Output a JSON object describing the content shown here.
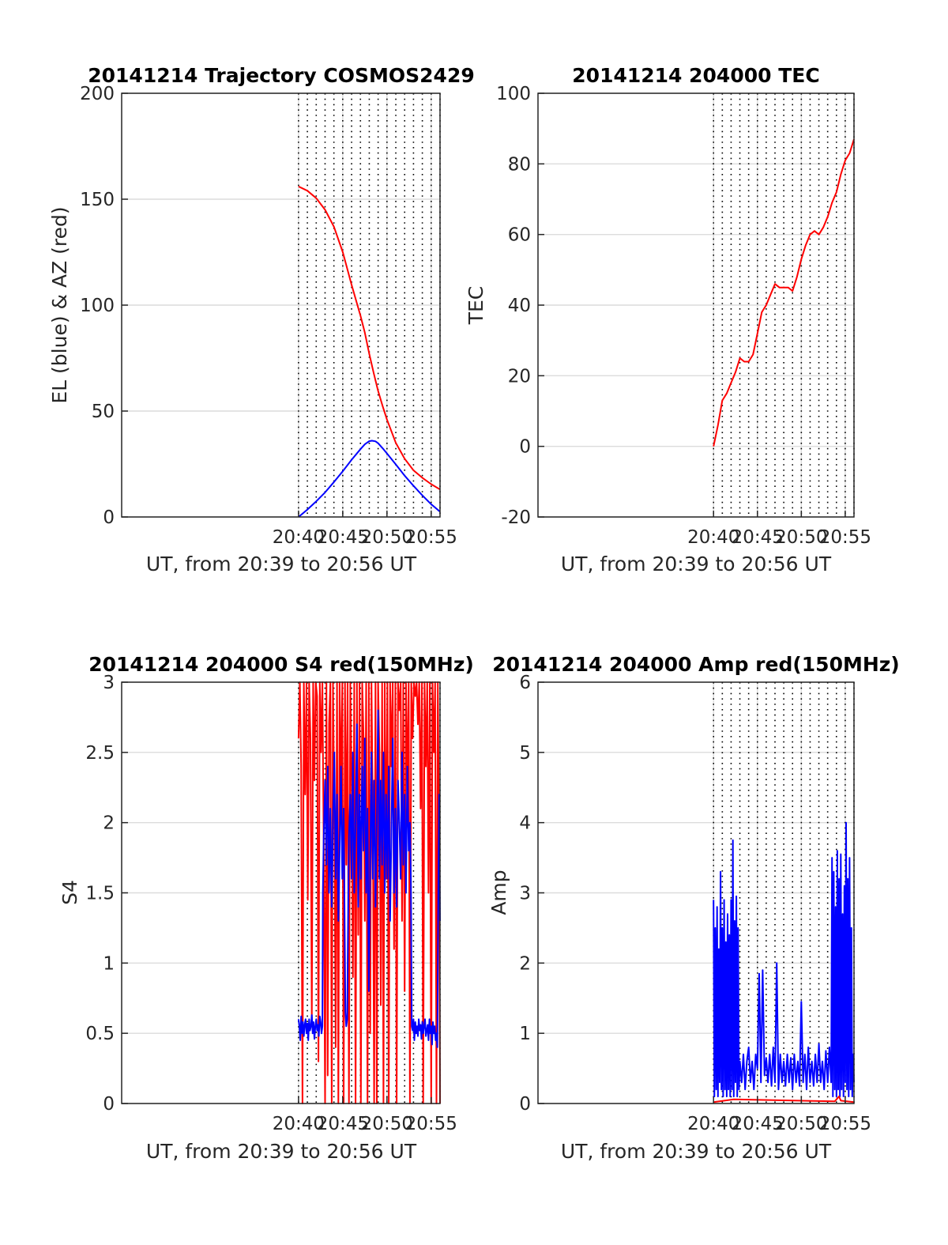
{
  "chart_data": [
    {
      "type": "line",
      "title": "20141214 Trajectory COSMOS2429",
      "xlabel": "UT, from 20:39 to 20:56 UT",
      "ylabel": "EL (blue) & AZ (red)",
      "xlim": [
        20.0,
        56.0
      ],
      "ylim": [
        0,
        200
      ],
      "xticks": [
        40,
        45,
        50,
        55
      ],
      "xtick_labels": [
        "20:40",
        "20:45",
        "20:50",
        "20:55"
      ],
      "yticks": [
        0,
        50,
        100,
        150,
        200
      ],
      "ytick_labels": [
        "0",
        "50",
        "100",
        "150",
        "200"
      ],
      "grid": true,
      "series": [
        {
          "color": "#0000ff",
          "x": [
            40,
            41,
            42,
            43,
            44,
            45,
            46,
            47,
            47.5,
            48,
            48.3,
            48.7,
            49,
            49.5,
            50,
            51,
            52,
            53,
            54,
            55,
            56
          ],
          "y": [
            0,
            3.5,
            7.4,
            11.6,
            16.5,
            21.6,
            27,
            32,
            34.3,
            35.8,
            36,
            35.7,
            34.8,
            32.5,
            30,
            24.8,
            19.5,
            14.7,
            10.2,
            6,
            2.5
          ]
        },
        {
          "color": "#ff0000",
          "x": [
            40,
            41,
            42,
            43,
            44,
            45,
            46,
            47,
            47.5,
            48,
            48.5,
            49,
            49.5,
            50,
            51,
            52,
            53,
            54,
            55,
            56
          ],
          "y": [
            156,
            154,
            150.5,
            145,
            137,
            125,
            109.5,
            95,
            87,
            77,
            68,
            59.5,
            52.5,
            46,
            35,
            27.5,
            22,
            18.5,
            15.5,
            13
          ]
        }
      ]
    },
    {
      "type": "line",
      "title": "20141214 204000 TEC",
      "xlabel": "UT, from 20:39 to 20:56 UT",
      "ylabel": "TEC",
      "xlim": [
        20.0,
        56.0
      ],
      "ylim": [
        -20,
        100
      ],
      "xticks": [
        40,
        45,
        50,
        55
      ],
      "xtick_labels": [
        "20:40",
        "20:45",
        "20:50",
        "20:55"
      ],
      "yticks": [
        -20,
        0,
        20,
        40,
        60,
        80,
        100
      ],
      "ytick_labels": [
        "-20",
        "0",
        "20",
        "40",
        "60",
        "80",
        "100"
      ],
      "grid": true,
      "series": [
        {
          "color": "#ff0000",
          "x": [
            40,
            40.5,
            41,
            41.5,
            42,
            42.5,
            43,
            43.5,
            44,
            44.5,
            45,
            45.5,
            46,
            46.5,
            47,
            47.5,
            48,
            48.5,
            49,
            49.5,
            50,
            50.5,
            51,
            51.5,
            52,
            52.5,
            53,
            53.5,
            54,
            54.5,
            55,
            55.5,
            56
          ],
          "y": [
            0,
            6,
            13,
            15,
            18,
            21,
            25,
            24,
            24,
            26,
            32,
            38,
            40,
            43,
            46,
            45,
            45,
            45,
            44,
            48,
            53,
            57,
            60,
            61,
            60,
            62,
            65,
            69,
            72,
            77,
            81,
            83,
            87
          ]
        }
      ]
    },
    {
      "type": "line",
      "title": "20141214 204000 S4 red(150MHz)",
      "xlabel": "UT, from 20:39 to 20:56 UT",
      "ylabel": "S4",
      "xlim": [
        20.0,
        56.0
      ],
      "ylim": [
        0,
        3
      ],
      "xticks": [
        40,
        45,
        50,
        55
      ],
      "xtick_labels": [
        "20:40",
        "20:45",
        "20:50",
        "20:55"
      ],
      "yticks": [
        0,
        0.5,
        1,
        1.5,
        2,
        2.5,
        3
      ],
      "ytick_labels": [
        "0",
        "0.5",
        "1",
        "1.5",
        "2",
        "2.5",
        "3"
      ],
      "grid": true,
      "series": [
        {
          "color": "#ff0000",
          "x": [
            40,
            40.15,
            40.3,
            40.45,
            40.6,
            40.75,
            40.9,
            41.05,
            41.2,
            41.35,
            41.5,
            41.65,
            41.8,
            41.95,
            42.1,
            42.25,
            42.4,
            42.55,
            42.7,
            42.85,
            43.0,
            43.15,
            43.3,
            43.45,
            43.6,
            43.75,
            43.9,
            44.05,
            44.2,
            44.35,
            44.5,
            44.65,
            44.8,
            44.95,
            45.1,
            45.25,
            45.4,
            45.55,
            45.7,
            45.85,
            46.0,
            46.15,
            46.3,
            46.45,
            46.6,
            46.75,
            46.9,
            47.05,
            47.2,
            47.35,
            47.5,
            47.65,
            47.8,
            47.95,
            48.1,
            48.25,
            48.4,
            48.55,
            48.7,
            48.85,
            49.0,
            49.15,
            49.3,
            49.45,
            49.6,
            49.75,
            49.9,
            50.05,
            50.2,
            50.35,
            50.5,
            50.65,
            50.8,
            50.95,
            51.1,
            51.25,
            51.4,
            51.55,
            51.7,
            51.85,
            52.0,
            52.15,
            52.3,
            52.45,
            52.6,
            52.75,
            52.9,
            53.05,
            53.2,
            53.35,
            53.5,
            53.65,
            53.8,
            53.95,
            54.1,
            54.25,
            54.4,
            54.55,
            54.7,
            54.85,
            55.0,
            55.15,
            55.3,
            55.45,
            55.6,
            55.75,
            55.9,
            56.0
          ],
          "y": [
            2.6,
            3,
            2.4,
            0,
            3,
            2.2,
            3,
            1.45,
            3,
            2.6,
            0.6,
            3,
            2.3,
            3,
            2.9,
            0.3,
            3,
            2.5,
            3,
            1.8,
            0,
            3,
            0.2,
            2.7,
            3,
            0,
            3,
            2.1,
            0.4,
            3,
            0,
            3,
            2.2,
            3,
            0,
            3,
            1.7,
            3,
            0,
            3,
            2.3,
            0.9,
            3,
            0,
            3,
            1.2,
            3,
            0,
            3,
            2.6,
            1.3,
            3,
            0,
            3,
            0.5,
            3,
            2.1,
            0,
            3,
            0,
            3,
            2.5,
            0.7,
            3,
            0,
            3,
            1.6,
            3,
            0,
            3,
            2.4,
            3,
            1.1,
            3,
            0,
            3,
            2.8,
            3,
            1.3,
            3,
            0.8,
            3,
            2.2,
            3,
            0,
            3,
            2.6,
            3,
            2.9,
            3,
            2.7,
            3,
            2.1,
            3,
            0,
            3,
            2.4,
            3,
            1.5,
            3,
            0,
            3,
            2.5,
            3,
            0,
            3,
            1.8,
            0
          ]
        },
        {
          "color": "#0000ff",
          "x": [
            40,
            40.1,
            40.2,
            40.3,
            40.4,
            40.5,
            40.6,
            40.7,
            40.8,
            40.9,
            41.0,
            41.1,
            41.2,
            41.3,
            41.4,
            41.5,
            41.6,
            41.7,
            41.8,
            41.9,
            42.0,
            42.1,
            42.2,
            42.3,
            42.4,
            42.5,
            42.6,
            42.7,
            42.75,
            42.85,
            43.0,
            43.15,
            43.3,
            43.45,
            43.6,
            43.75,
            43.9,
            44.05,
            44.2,
            44.35,
            44.5,
            44.65,
            44.8,
            44.95,
            45.1,
            45.2,
            45.3,
            45.4,
            45.5,
            45.6,
            45.7,
            45.85,
            46.0,
            46.15,
            46.3,
            46.45,
            46.6,
            46.75,
            46.9,
            47.05,
            47.2,
            47.35,
            47.5,
            47.65,
            47.8,
            47.95,
            48.1,
            48.25,
            48.4,
            48.55,
            48.7,
            48.85,
            49.0,
            49.15,
            49.3,
            49.45,
            49.6,
            49.75,
            49.9,
            50.05,
            50.2,
            50.35,
            50.5,
            50.65,
            50.8,
            50.95,
            51.1,
            51.25,
            51.4,
            51.55,
            51.7,
            51.85,
            52.0,
            52.15,
            52.3,
            52.45,
            52.6,
            52.7,
            52.8,
            52.9,
            53.0,
            53.1,
            53.2,
            53.3,
            53.4,
            53.5,
            53.6,
            53.7,
            53.8,
            53.9,
            54.0,
            54.1,
            54.2,
            54.3,
            54.4,
            54.5,
            54.6,
            54.7,
            54.8,
            54.9,
            55.0,
            55.1,
            55.2,
            55.3,
            55.4,
            55.5,
            55.6,
            55.7,
            55.8,
            55.9,
            56.0
          ],
          "y": [
            0.6,
            0.55,
            0.45,
            0.62,
            0.5,
            0.58,
            0.48,
            0.56,
            0.6,
            0.5,
            0.57,
            0.45,
            0.6,
            0.52,
            0.55,
            0.63,
            0.5,
            0.58,
            0.46,
            0.55,
            0.6,
            0.52,
            0.56,
            0.48,
            0.62,
            0.58,
            0.5,
            0.55,
            1.5,
            1.9,
            2.3,
            1.7,
            2.4,
            1.5,
            2.1,
            1.4,
            2.0,
            2.5,
            1.6,
            2.2,
            1.3,
            1.8,
            2.4,
            1.6,
            2.1,
            1.4,
            0.65,
            0.55,
            0.6,
            1.3,
            1.9,
            2.2,
            1.6,
            2.5,
            1.5,
            2.0,
            2.7,
            1.4,
            2.2,
            1.6,
            2.4,
            1.8,
            2.6,
            1.5,
            2.1,
            0.8,
            1.7,
            2.5,
            1.6,
            2.3,
            1.4,
            2.0,
            2.8,
            1.6,
            2.3,
            1.7,
            2.5,
            1.5,
            2.2,
            1.6,
            2.4,
            1.3,
            1.9,
            2.6,
            1.5,
            2.1,
            1.4,
            2.3,
            2.0,
            1.6,
            2.5,
            1.7,
            2.2,
            1.5,
            2.4,
            1.8,
            2.0,
            1.6,
            0.55,
            0.52,
            0.6,
            0.45,
            0.58,
            0.5,
            0.55,
            0.48,
            0.6,
            0.52,
            0.56,
            0.46,
            0.58,
            0.5,
            0.55,
            0.6,
            0.48,
            0.52,
            0.56,
            0.45,
            0.6,
            0.5,
            0.55,
            0.42,
            0.58,
            0.5,
            0.55,
            0.45,
            0.5,
            0.4,
            1.5,
            2.2,
            1.3
          ]
        }
      ]
    },
    {
      "type": "line",
      "title": "20141214 204000 Amp red(150MHz)",
      "xlabel": "UT, from 20:39 to 20:56 UT",
      "ylabel": "Amp",
      "xlim": [
        20.0,
        56.0
      ],
      "ylim": [
        0,
        6
      ],
      "xticks": [
        40,
        45,
        50,
        55
      ],
      "xtick_labels": [
        "20:40",
        "20:45",
        "20:50",
        "20:55"
      ],
      "yticks": [
        0,
        1,
        2,
        3,
        4,
        5,
        6
      ],
      "ytick_labels": [
        "0",
        "1",
        "2",
        "3",
        "4",
        "5",
        "6"
      ],
      "grid": true,
      "series": [
        {
          "color": "#0000ff",
          "x": [
            40,
            40.1,
            40.2,
            40.3,
            40.4,
            40.5,
            40.6,
            40.7,
            40.8,
            40.9,
            41.0,
            41.1,
            41.2,
            41.3,
            41.4,
            41.5,
            41.6,
            41.7,
            41.8,
            41.9,
            42.0,
            42.1,
            42.2,
            42.3,
            42.4,
            42.5,
            42.6,
            42.7,
            42.8,
            42.9,
            43.0,
            43.2,
            43.4,
            43.6,
            43.8,
            44.0,
            44.2,
            44.4,
            44.6,
            44.8,
            45.0,
            45.2,
            45.4,
            45.6,
            45.8,
            46.0,
            46.2,
            46.4,
            46.6,
            46.8,
            47.0,
            47.2,
            47.4,
            47.6,
            47.8,
            48.0,
            48.2,
            48.4,
            48.6,
            48.8,
            49.0,
            49.2,
            49.4,
            49.6,
            49.8,
            50.0,
            50.2,
            50.4,
            50.6,
            50.8,
            51.0,
            51.2,
            51.4,
            51.6,
            51.8,
            52.0,
            52.2,
            52.4,
            52.6,
            52.8,
            53.0,
            53.2,
            53.4,
            53.5,
            53.6,
            53.7,
            53.8,
            53.9,
            54.0,
            54.1,
            54.2,
            54.3,
            54.4,
            54.5,
            54.6,
            54.7,
            54.8,
            54.9,
            55.0,
            55.1,
            55.2,
            55.3,
            55.4,
            55.5,
            55.6,
            55.7,
            55.8,
            55.9,
            56.0
          ],
          "y": [
            2.9,
            0.1,
            2.5,
            0.2,
            2.8,
            0.1,
            2.2,
            0.3,
            3.3,
            0.2,
            2.5,
            0.1,
            2.9,
            0.2,
            2.3,
            0.1,
            2.7,
            0.2,
            2.4,
            0.1,
            2.9,
            0.2,
            3.75,
            0.1,
            2.6,
            0.3,
            2.95,
            0.1,
            2.5,
            0.2,
            0.6,
            0.3,
            0.7,
            0.2,
            0.6,
            0.8,
            0.3,
            0.6,
            0.2,
            0.7,
            0.5,
            1.85,
            0.3,
            1.9,
            0.4,
            0.65,
            0.3,
            0.7,
            0.25,
            0.8,
            0.3,
            2.0,
            0.2,
            0.7,
            0.3,
            0.6,
            0.25,
            0.7,
            0.3,
            0.65,
            0.2,
            0.7,
            0.3,
            0.6,
            0.25,
            1.45,
            0.3,
            0.7,
            0.2,
            0.8,
            0.3,
            0.6,
            0.25,
            0.7,
            0.3,
            0.85,
            0.3,
            0.6,
            0.2,
            0.75,
            0.3,
            0.8,
            0.3,
            3.5,
            0.1,
            3.3,
            0.2,
            2.8,
            0.1,
            3.6,
            0.2,
            3.2,
            0.1,
            3.55,
            0.2,
            2.7,
            0.1,
            3.1,
            0.3,
            4.0,
            0.2,
            3.2,
            0.1,
            3.5,
            0.2,
            2.5,
            0.1,
            0.7,
            0.3
          ]
        },
        {
          "color": "#ff0000",
          "x": [
            40,
            42.3,
            53.8,
            54.3,
            54.5,
            56
          ],
          "y": [
            0.02,
            0.06,
            0.03,
            0.1,
            0.04,
            0.02
          ]
        }
      ]
    }
  ]
}
